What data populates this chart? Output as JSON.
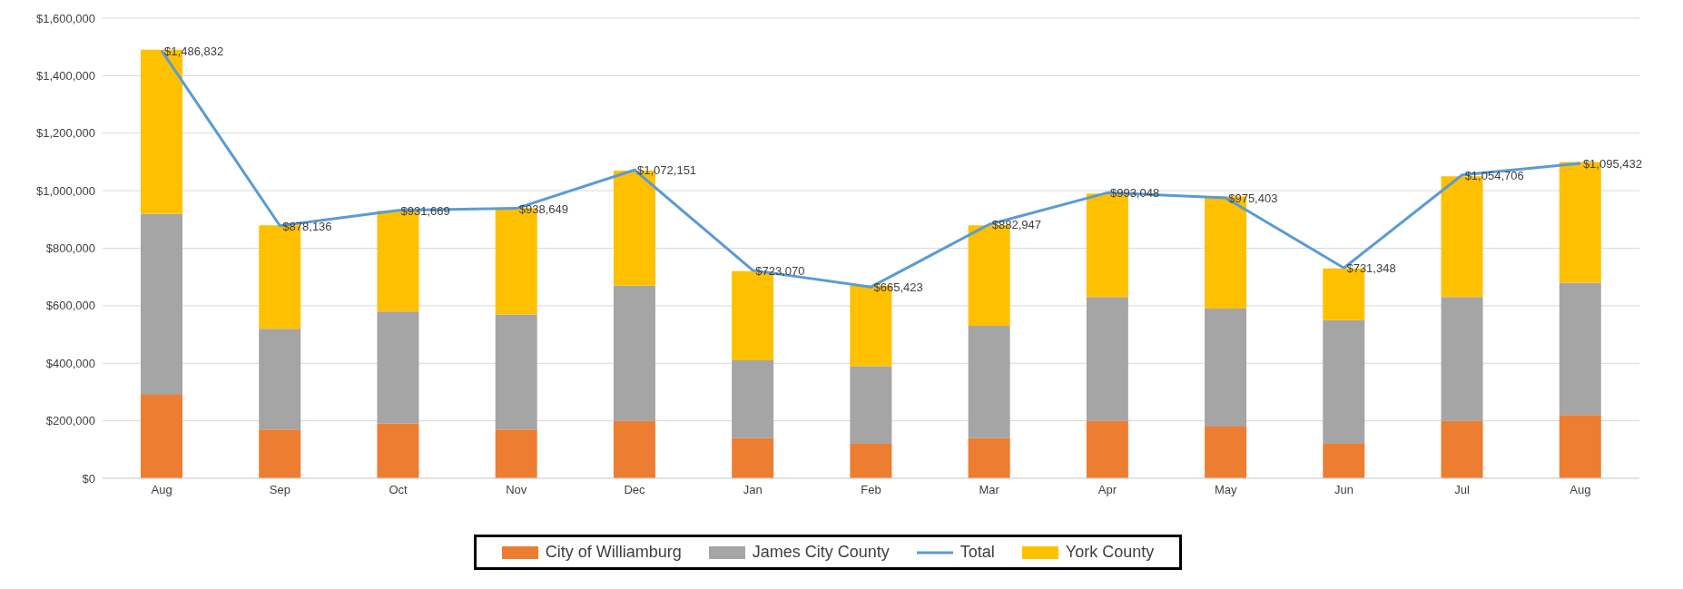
{
  "chart_data": {
    "type": "bar",
    "stacked": true,
    "categories": [
      "Aug",
      "Sep",
      "Oct",
      "Nov",
      "Dec",
      "Jan",
      "Feb",
      "Mar",
      "Apr",
      "May",
      "Jun",
      "Jul",
      "Aug"
    ],
    "series": [
      {
        "name": "City of Williamburg",
        "color": "#ed7d31",
        "values": [
          290000,
          170000,
          190000,
          170000,
          200000,
          140000,
          120000,
          140000,
          200000,
          180000,
          120000,
          200000,
          220000
        ]
      },
      {
        "name": "James City County",
        "color": "#a5a5a5",
        "values": [
          630000,
          350000,
          390000,
          400000,
          470000,
          270000,
          270000,
          390000,
          430000,
          410000,
          430000,
          430000,
          460000
        ]
      },
      {
        "name": "York County",
        "color": "#ffc000",
        "values": [
          570000,
          360000,
          350000,
          370000,
          400000,
          310000,
          280000,
          350000,
          360000,
          390000,
          180000,
          420000,
          420000
        ]
      },
      {
        "name": "Total",
        "type": "line",
        "color": "#5b9bd5",
        "values": [
          1486832,
          878136,
          931669,
          938649,
          1072151,
          723070,
          665423,
          882947,
          993048,
          975403,
          731348,
          1054706,
          1095432
        ],
        "value_labels": [
          "$1,486,832",
          "$878,136",
          "$931,669",
          "$938,649",
          "$1,072,151",
          "$723,070",
          "$665,423",
          "$882,947",
          "$993,048",
          "$975,403",
          "$731,348",
          "$1,054,706",
          "$1,095,432"
        ]
      }
    ],
    "ylim": [
      0,
      1600000
    ],
    "yticks": [
      {
        "value": 0,
        "label": "$0"
      },
      {
        "value": 200000,
        "label": "$200,000"
      },
      {
        "value": 400000,
        "label": "$400,000"
      },
      {
        "value": 600000,
        "label": "$600,000"
      },
      {
        "value": 800000,
        "label": "$800,000"
      },
      {
        "value": 1000000,
        "label": "$1,000,000"
      },
      {
        "value": 1200000,
        "label": "$1,200,000"
      },
      {
        "value": 1400000,
        "label": "$1,400,000"
      },
      {
        "value": 1600000,
        "label": "$1,600,000"
      }
    ],
    "grid": "y",
    "legend": "bottom",
    "marker": "none",
    "line_style": "solid"
  }
}
